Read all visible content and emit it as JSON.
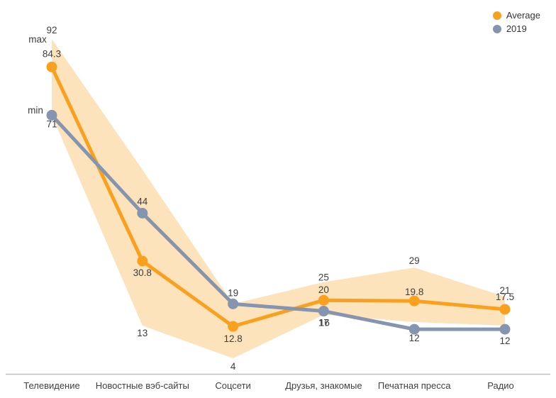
{
  "chart_data": {
    "type": "line",
    "title": "",
    "xlabel": "",
    "ylabel": "",
    "ylim": [
      0,
      100
    ],
    "grid": false,
    "legend_position": "top-right",
    "categories": [
      "Телевидение",
      "Новостные вэб-сайты",
      "Соцсети",
      "Друзья, знакомые",
      "Печатная пресса",
      "Радио"
    ],
    "series": [
      {
        "name": "Average",
        "color": "#F9A11E",
        "values": [
          84.3,
          30.8,
          12.8,
          20,
          19.8,
          17.5
        ],
        "labels": [
          "84.3",
          "30.8",
          "12.8",
          "20",
          "19.8",
          "17.5"
        ]
      },
      {
        "name": "2019",
        "color": "#8594AF",
        "values": [
          71,
          44,
          19,
          17,
          12,
          12
        ],
        "labels": [
          "71",
          "44",
          "19",
          "17",
          "12",
          "12"
        ]
      }
    ],
    "band": {
      "name": "min-max range",
      "fill_color": "rgba(249,161,30,0.30)",
      "max_values": [
        92,
        56,
        19,
        25,
        29,
        21
      ],
      "min_values": [
        71,
        13,
        4,
        16,
        14,
        13
      ],
      "max_labels": [
        "92",
        "",
        "",
        "25",
        "29",
        "21"
      ],
      "min_labels": [
        "",
        "13",
        "4",
        "16",
        "",
        ""
      ]
    },
    "annotations": {
      "max_text": "max",
      "min_text": "min"
    },
    "axis": {
      "line_color": "#BDBDBD"
    },
    "legend": [
      {
        "label": "Average",
        "color": "#F9A11E"
      },
      {
        "label": "2019",
        "color": "#8594AF"
      }
    ]
  }
}
